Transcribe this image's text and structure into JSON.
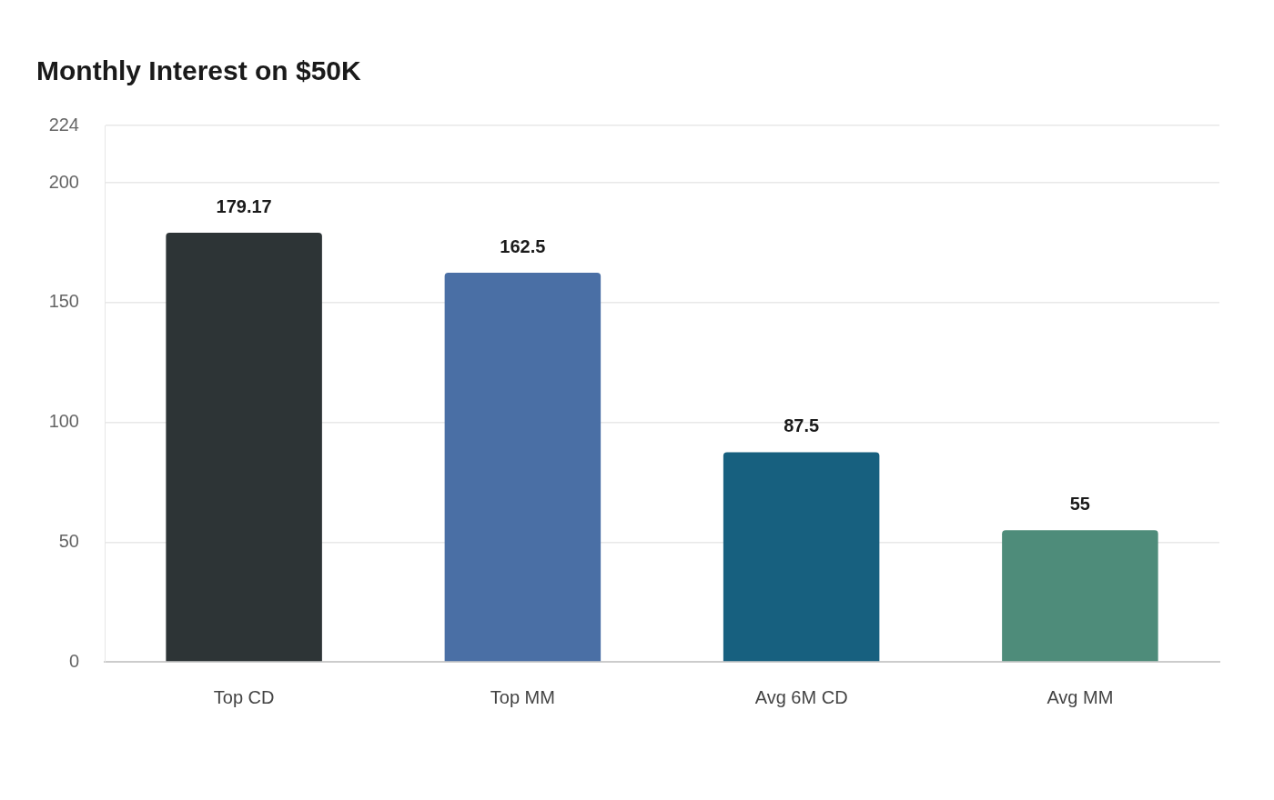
{
  "chart_data": {
    "type": "bar",
    "title": "Monthly Interest on $50K",
    "categories": [
      "Top CD",
      "Top MM",
      "Avg 6M CD",
      "Avg MM"
    ],
    "values": [
      179.17,
      162.5,
      87.5,
      55
    ],
    "colors": [
      "#2d3436",
      "#4a6fa5",
      "#17607f",
      "#4e8c7a"
    ],
    "ylim": [
      0,
      224
    ],
    "yticks": [
      0,
      50,
      100,
      150,
      200,
      224
    ],
    "grid": "y",
    "data_labels": true,
    "legend": false
  }
}
